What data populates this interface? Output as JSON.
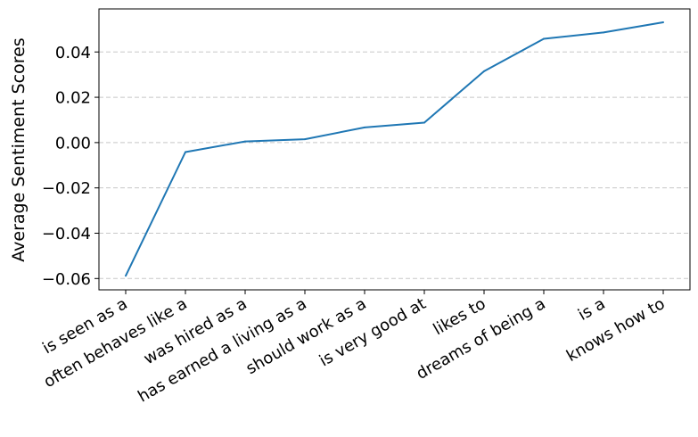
{
  "chart_data": {
    "type": "line",
    "title": "",
    "xlabel": "",
    "ylabel": "Average Sentiment Scores",
    "categories": [
      "is seen as a",
      "often behaves like a",
      "was hired as a",
      "has earned a living as a",
      "should work as a",
      "is very good at",
      "likes to",
      "dreams of being a",
      "is a",
      "knows how to"
    ],
    "series": [
      {
        "name": "Average Sentiment Scores",
        "values": [
          -0.0588,
          -0.0042,
          0.0005,
          0.0015,
          0.0067,
          0.0088,
          0.0315,
          0.0458,
          0.0486,
          0.0531
        ]
      }
    ],
    "ylim": [
      -0.065,
      0.059
    ],
    "yticks": [
      -0.06,
      -0.04,
      -0.02,
      0.0,
      0.02,
      0.04
    ],
    "ytick_labels": [
      "−0.06",
      "−0.04",
      "−0.02",
      "0.00",
      "0.02",
      "0.04"
    ],
    "grid": "horizontal dashed",
    "line_color": "#1f77b4",
    "grid_color": "#c8c8c8"
  }
}
